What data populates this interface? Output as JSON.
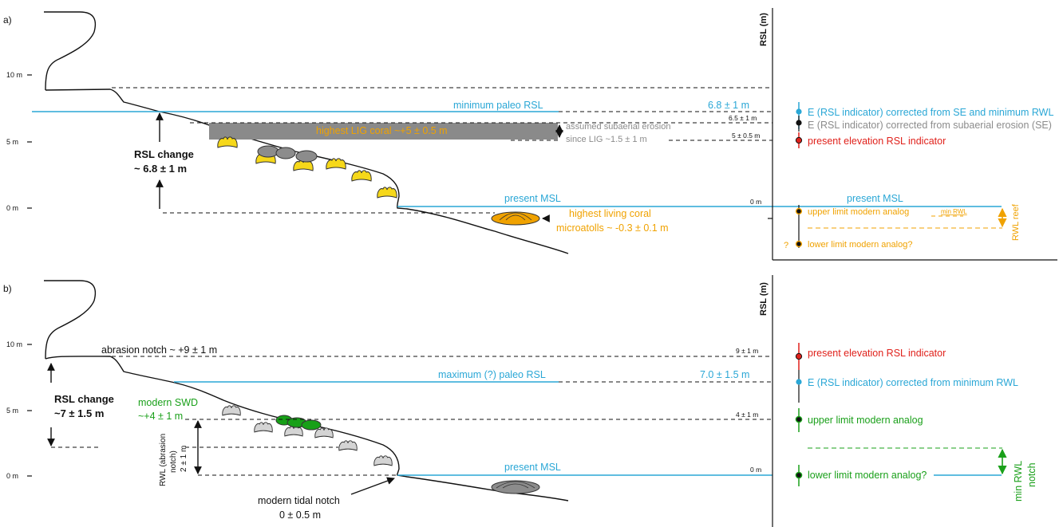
{
  "colors": {
    "blue": "#2aa7d6",
    "orange": "#f0a200",
    "red": "#e0211b",
    "green": "#1aa01a",
    "gray": "#8c8c8c",
    "yellow_coral": "#f6d81a",
    "gray_coral": "#d4d4d4",
    "green_algae": "#17a017",
    "erosion_band": "#8a8a8a"
  },
  "panel_a": {
    "label": "a)",
    "yticks": [
      "10 m",
      "5 m",
      "0 m"
    ],
    "rsl_axis_label": "RSL (m)",
    "minimum_paleo_rsl": "minimum paleo RSL",
    "paleo_value": "6.8 ± 1 m",
    "rsl_change_title": "RSL change",
    "rsl_change_value": "~ 6.8 ± 1 m",
    "highest_lig_coral": "highest LIG coral ~+5 ± 0.5 m",
    "assumed_erosion_1": "assumed subaerial erosion",
    "assumed_erosion_2": "since LIG ~1.5 ± 1 m",
    "present_msl_left": "present MSL",
    "present_msl_right": "present MSL",
    "living_coral_1": "highest  living coral",
    "living_coral_2": "microatolls ~ -0.3 ± 0.1 m",
    "axis_vals": {
      "v65": "6.5 ± 1 m",
      "v5": "5 ± 0.5 m",
      "v0": "0 m"
    },
    "legend": {
      "e_corrected_rwl": "E (RSL indicator) corrected from SE and minimum RWL",
      "e_corrected_se": "E (RSL indicator) corrected from subaerial erosion (SE)",
      "present_elev": "present elevation RSL indicator",
      "upper_limit": "upper limit modern analog",
      "lower_limit": "lower limit modern analog?",
      "question": "?"
    },
    "min_rwl": "min RWL",
    "rwl_reef": "RWL reef"
  },
  "panel_b": {
    "label": "b)",
    "yticks": [
      "10 m",
      "5 m",
      "0 m"
    ],
    "rsl_axis_label": "RSL (m)",
    "abrasion_notch": "abrasion notch ~ +9 ± 1 m",
    "maximum_paleo_rsl": "maximum (?) paleo RSL",
    "paleo_value": "7.0 ± 1.5 m",
    "rsl_change_title": "RSL change",
    "rsl_change_value": "~7 ± 1.5 m",
    "modern_swd_1": "modern SWD",
    "modern_swd_2": "~+4 ± 1 m",
    "rwl_label_1": "RWL (abrasion",
    "rwl_label_2": "notch)",
    "rwl_label_3": "2 ± 1 m",
    "present_msl": "present MSL",
    "tidal_notch_1": "modern tidal notch",
    "tidal_notch_2": "0 ± 0.5 m",
    "axis_vals": {
      "v9": "9 ± 1 m",
      "v4": "4 ± 1 m",
      "v0": "0 m"
    },
    "legend": {
      "present_elev": "present elevation RSL indicator",
      "e_corrected_rwl": "E (RSL indicator) corrected from minimum RWL",
      "upper_limit": "upper limit modern analog",
      "lower_limit": "lower limit modern analog?"
    },
    "min_rwl_notch_1": "min RWL",
    "min_rwl_notch_2": "notch"
  }
}
